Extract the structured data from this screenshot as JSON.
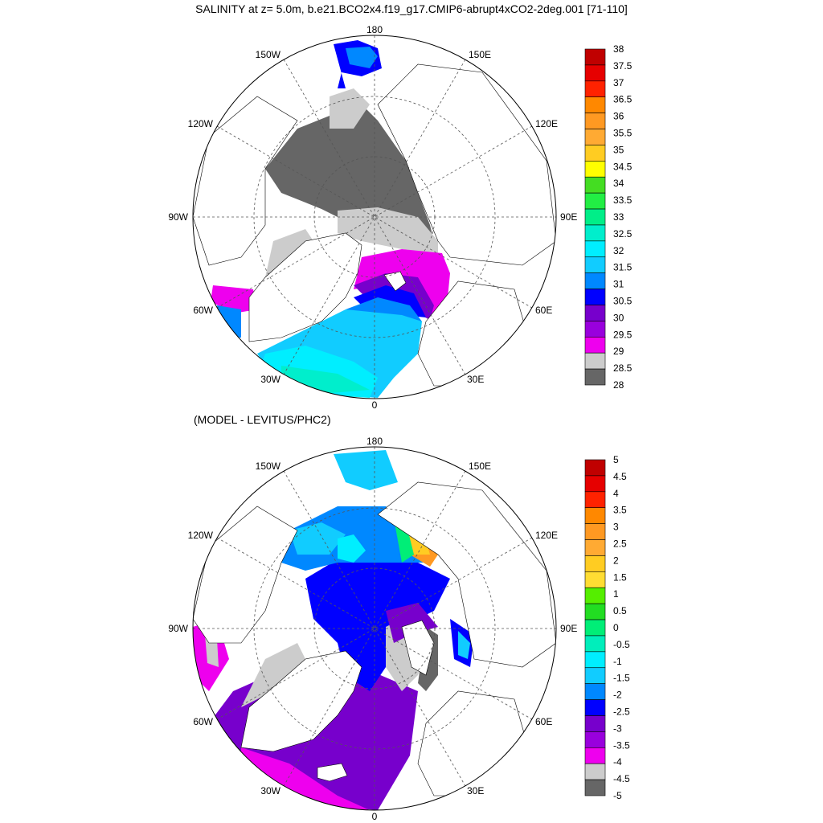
{
  "titles": {
    "main": "SALINITY at z=   5.0m, b.e21.BCO2x4.f19_g17.CMIP6-abrupt4xCO2-2deg.001 [71-110]",
    "difference": "(MODEL - LEVITUS/PHC2)"
  },
  "longitude_labels": [
    "180",
    "150E",
    "120E",
    "90E",
    "60E",
    "30E",
    "0",
    "30W",
    "60W",
    "90W",
    "120W",
    "150W"
  ],
  "maps": [
    {
      "name": "salinity",
      "colorbar": {
        "labels": [
          "38",
          "37.5",
          "37",
          "36.5",
          "36",
          "35.5",
          "35",
          "34.5",
          "34",
          "33.5",
          "33",
          "32.5",
          "32",
          "31.5",
          "31",
          "30.5",
          "30",
          "29.5",
          "29",
          "28.5",
          "28"
        ],
        "colors": [
          "#c00000",
          "#e60000",
          "#ff2200",
          "#ff8800",
          "#ff9922",
          "#ffaa33",
          "#ffcc22",
          "#ffff00",
          "#44dd22",
          "#22ee44",
          "#00ee88",
          "#00eecc",
          "#00eeff",
          "#11ccff",
          "#0088ff",
          "#0000ff",
          "#7700cc",
          "#9900dd",
          "#ee00ee",
          "#cccccc",
          "#666666"
        ]
      }
    },
    {
      "name": "model-minus-levitus",
      "colorbar": {
        "labels": [
          "5",
          "4.5",
          "4",
          "3.5",
          "3",
          "2.5",
          "2",
          "1.5",
          "1",
          "0.5",
          "0",
          "-0.5",
          "-1",
          "-1.5",
          "-2",
          "-2.5",
          "-3",
          "-3.5",
          "-4",
          "-4.5",
          "-5"
        ],
        "colors": [
          "#c00000",
          "#e60000",
          "#ff2200",
          "#ff8800",
          "#ff9922",
          "#ffaa33",
          "#ffcc22",
          "#ffdd33",
          "#55ee00",
          "#22dd22",
          "#00ee77",
          "#00eebb",
          "#00eeff",
          "#11ccff",
          "#0088ff",
          "#0000ff",
          "#7700cc",
          "#9900dd",
          "#ee00ee",
          "#cccccc",
          "#666666"
        ]
      }
    }
  ]
}
